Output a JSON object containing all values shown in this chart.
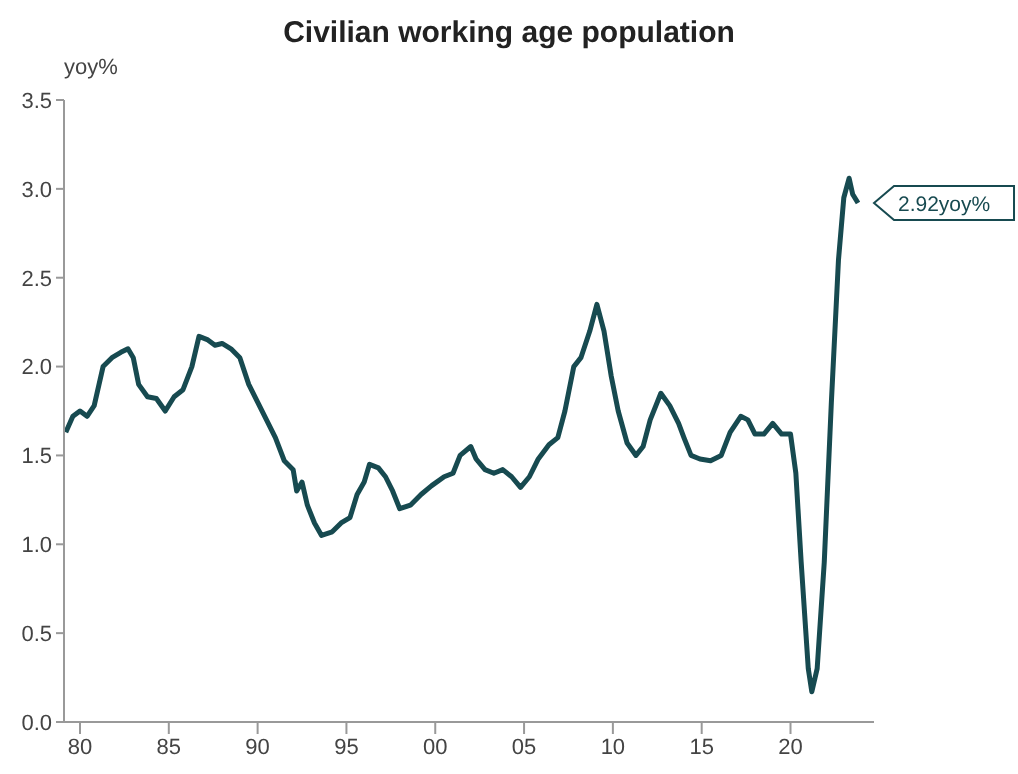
{
  "chart_data": {
    "type": "line",
    "title": "Civilian working age population",
    "ylabel": "yoy%",
    "x": [
      1979.2,
      1979.6,
      1980.0,
      1980.4,
      1980.8,
      1981.3,
      1981.8,
      1982.3,
      1982.7,
      1983.0,
      1983.3,
      1983.8,
      1984.3,
      1984.8,
      1985.3,
      1985.8,
      1986.3,
      1986.7,
      1987.2,
      1987.6,
      1988.0,
      1988.5,
      1989.0,
      1989.5,
      1990.0,
      1990.5,
      1991.0,
      1991.5,
      1992.0,
      1992.2,
      1992.5,
      1992.8,
      1993.2,
      1993.6,
      1994.2,
      1994.7,
      1995.2,
      1995.6,
      1996.0,
      1996.3,
      1996.8,
      1997.2,
      1997.6,
      1998.0,
      1998.6,
      1999.2,
      1999.8,
      2000.5,
      2001.0,
      2001.4,
      2002.0,
      2002.3,
      2002.8,
      2003.3,
      2003.8,
      2004.3,
      2004.8,
      2005.3,
      2005.8,
      2006.4,
      2006.9,
      2007.3,
      2007.8,
      2008.2,
      2008.7,
      2009.1,
      2009.5,
      2009.9,
      2010.3,
      2010.8,
      2011.3,
      2011.7,
      2012.1,
      2012.7,
      2013.2,
      2013.7,
      2014.0,
      2014.4,
      2014.9,
      2015.5,
      2016.1,
      2016.6,
      2017.2,
      2017.6,
      2018.0,
      2018.5,
      2019.0,
      2019.5,
      2020.0,
      2020.3,
      2020.6,
      2021.0,
      2021.2,
      2021.5,
      2021.9,
      2022.3,
      2022.7,
      2023.0,
      2023.3,
      2023.5,
      2023.8
    ],
    "series": [
      {
        "color": "#174a50",
        "values": [
          1.63,
          1.72,
          1.75,
          1.72,
          1.78,
          2.0,
          2.05,
          2.08,
          2.1,
          2.05,
          1.9,
          1.83,
          1.82,
          1.75,
          1.83,
          1.87,
          2.0,
          2.17,
          2.15,
          2.12,
          2.13,
          2.1,
          2.05,
          1.9,
          1.8,
          1.7,
          1.6,
          1.47,
          1.42,
          1.3,
          1.35,
          1.22,
          1.12,
          1.05,
          1.07,
          1.12,
          1.15,
          1.28,
          1.35,
          1.45,
          1.43,
          1.38,
          1.3,
          1.2,
          1.22,
          1.28,
          1.33,
          1.38,
          1.4,
          1.5,
          1.55,
          1.48,
          1.42,
          1.4,
          1.42,
          1.38,
          1.32,
          1.38,
          1.48,
          1.56,
          1.6,
          1.75,
          2.0,
          2.05,
          2.2,
          2.35,
          2.2,
          1.95,
          1.75,
          1.57,
          1.5,
          1.55,
          1.7,
          1.85,
          1.78,
          1.68,
          1.6,
          1.5,
          1.48,
          1.47,
          1.5,
          1.63,
          1.72,
          1.7,
          1.62,
          1.62,
          1.68,
          1.62,
          1.62,
          1.4,
          0.9,
          0.3,
          0.17,
          0.3,
          0.9,
          1.8,
          2.6,
          2.95,
          3.06,
          2.97,
          2.92
        ]
      }
    ],
    "xlim": [
      1979.1,
      2024.7
    ],
    "xticks": [
      {
        "value": 1980,
        "label": "80"
      },
      {
        "value": 1985,
        "label": "85"
      },
      {
        "value": 1990,
        "label": "90"
      },
      {
        "value": 1995,
        "label": "95"
      },
      {
        "value": 2000,
        "label": "00"
      },
      {
        "value": 2005,
        "label": "05"
      },
      {
        "value": 2010,
        "label": "10"
      },
      {
        "value": 2015,
        "label": "15"
      },
      {
        "value": 2020,
        "label": "20"
      }
    ],
    "ylim": [
      0,
      3.5
    ],
    "yticks": [
      {
        "value": 0,
        "label": "0.0"
      },
      0.5,
      {
        "value": 1,
        "label": "1.0"
      },
      1.5,
      {
        "value": 2,
        "label": "2.0"
      },
      2.5,
      {
        "value": 3,
        "label": "3.0"
      },
      3.5
    ],
    "annotations": [
      {
        "text": "2.92yoy%",
        "x": 2023.8,
        "y": 2.92
      }
    ],
    "grid": false,
    "legend": false,
    "marker": "none",
    "line_style": "solid"
  }
}
